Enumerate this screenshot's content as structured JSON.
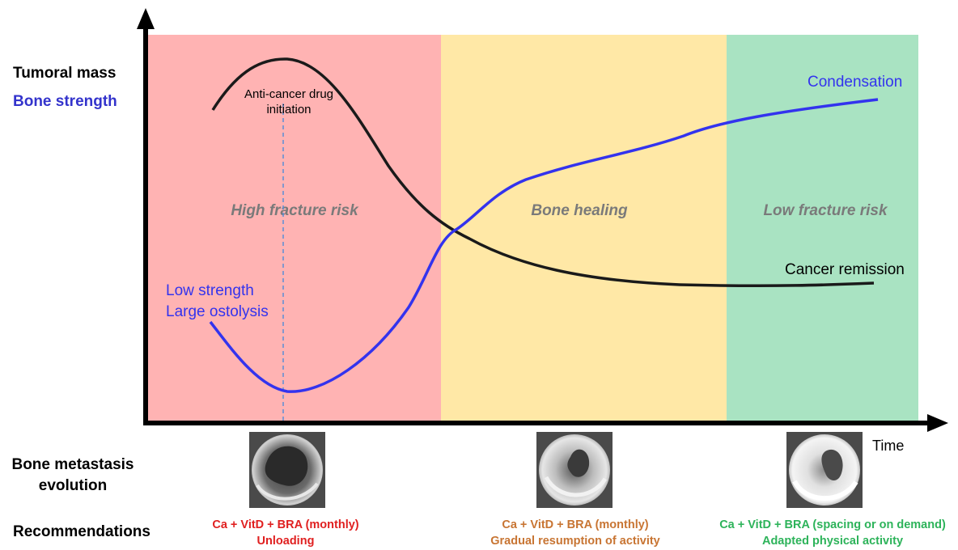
{
  "y_axis_labels": {
    "tumoral_mass": "Tumoral mass",
    "bone_strength": "Bone strength"
  },
  "x_axis_label": "Time",
  "phases": [
    {
      "name": "High fracture risk",
      "color": "#FFB3B3"
    },
    {
      "name": "Bone healing",
      "color": "#FFE8A6"
    },
    {
      "name": "Low fracture risk",
      "color": "#A9E3C2"
    }
  ],
  "annotations": {
    "drug_initiation_line1": "Anti-cancer drug",
    "drug_initiation_line2": "initiation",
    "condensation": "Condensation",
    "cancer_remission": "Cancer remission",
    "low_strength": "Low strength",
    "large_ostolysis": "Large ostolysis"
  },
  "row_labels": {
    "evolution_line1": "Bone metastasis",
    "evolution_line2": "evolution",
    "recommendations": "Recommendations"
  },
  "recommendations": [
    {
      "line1": "Ca + VitD + BRA (monthly)",
      "line2": "Unloading",
      "color": "#E02020"
    },
    {
      "line1": "Ca + VitD + BRA (monthly)",
      "line2": "Gradual resumption of activity",
      "color": "#C87533"
    },
    {
      "line1": "Ca + VitD + BRA (spacing or on demand)",
      "line2": "Adapted physical activity",
      "color": "#2DB35A"
    }
  ],
  "colors": {
    "tumor_curve": "#1a1a1a",
    "bone_curve": "#3333EE",
    "bone_label": "#3333CC",
    "drug_line": "#5B8FD6",
    "phase_label": "#7a7a7a"
  }
}
